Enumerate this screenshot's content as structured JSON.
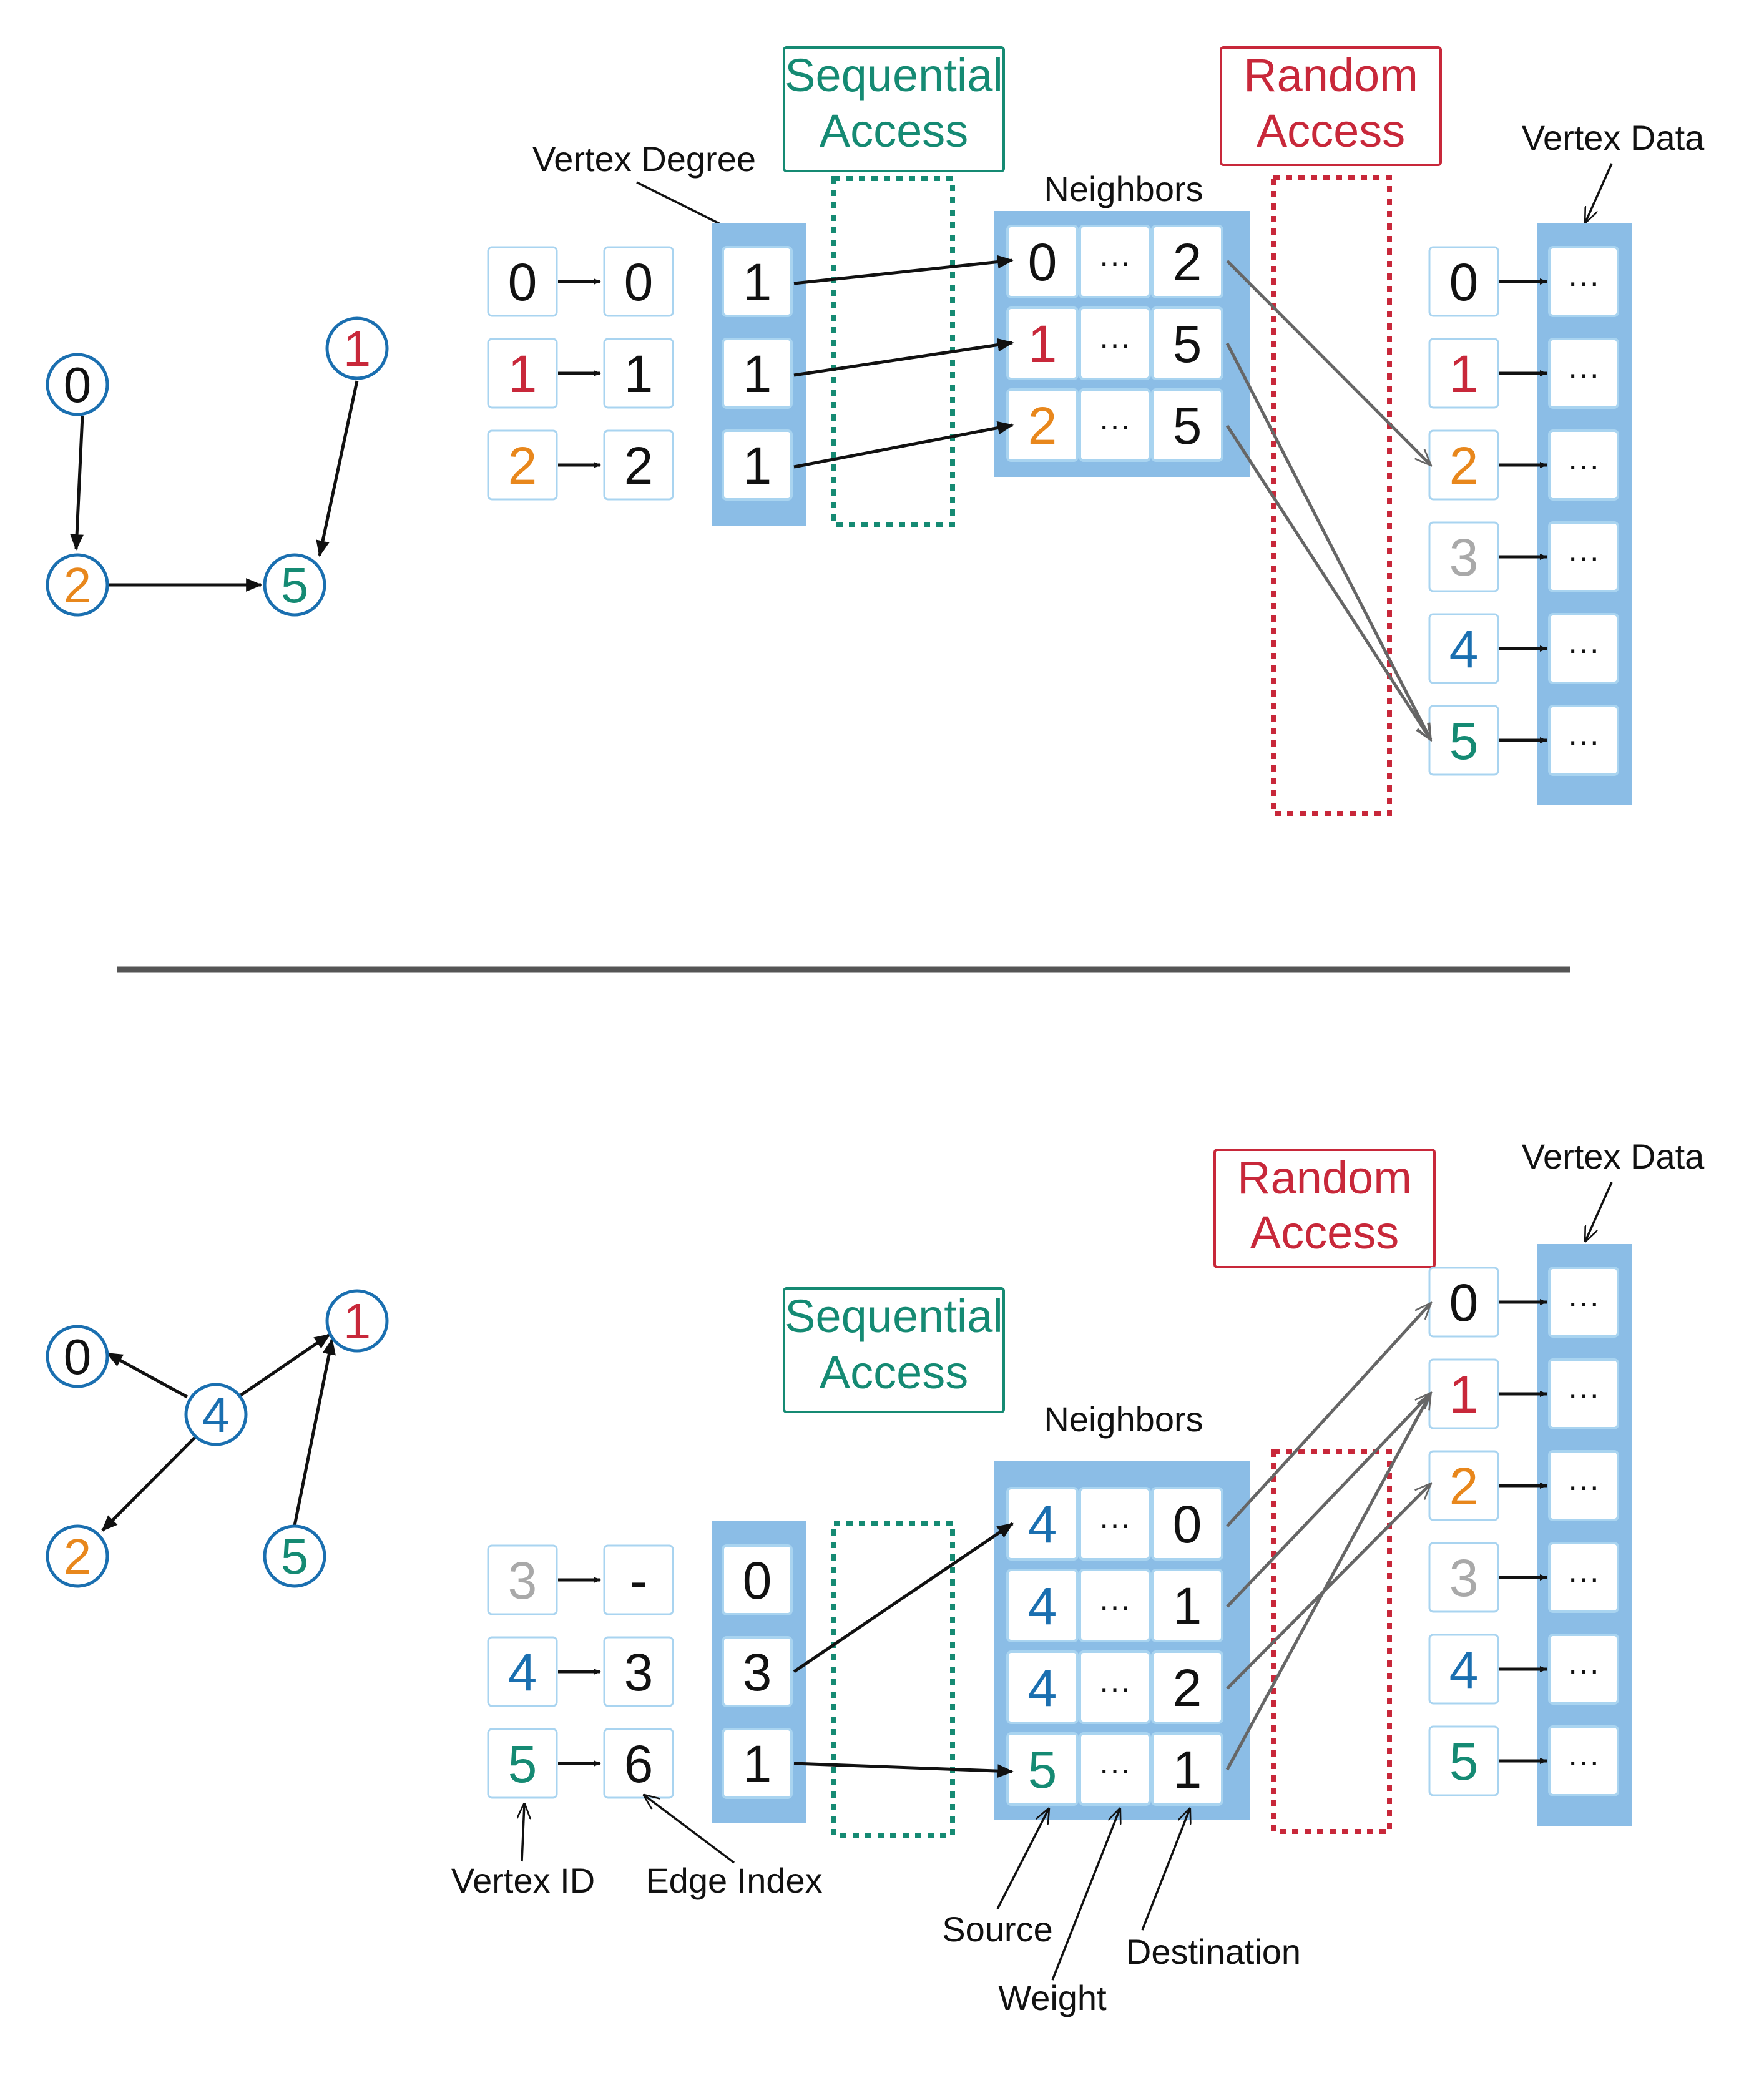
{
  "colors": {
    "black": "#111111",
    "red": "#c8283a",
    "orange": "#e8871c",
    "green": "#158a73",
    "blue": "#1a6fb0",
    "gray": "#a9a9a9",
    "array_fill": "#8bbde6",
    "cell_border": "#a9d4f0",
    "divider": "#555555",
    "random_arrow": "#666666"
  },
  "top": {
    "seq_label": [
      "Sequential",
      "Access"
    ],
    "rand_label": [
      "Random",
      "Access"
    ],
    "vertex_degree_label": "Vertex Degree",
    "neighbors_label": "Neighbors",
    "vertex_data_label": "Vertex Data",
    "graph_nodes": [
      {
        "label": "0",
        "color": "black"
      },
      {
        "label": "1",
        "color": "red"
      },
      {
        "label": "2",
        "color": "orange"
      },
      {
        "label": "5",
        "color": "green"
      }
    ],
    "vertex_ids": [
      {
        "label": "0",
        "color": "black"
      },
      {
        "label": "1",
        "color": "red"
      },
      {
        "label": "2",
        "color": "orange"
      }
    ],
    "edge_index": [
      "0",
      "1",
      "2"
    ],
    "degrees": [
      "1",
      "1",
      "1"
    ],
    "neighbors": [
      {
        "src": "0",
        "src_color": "black",
        "w": "···",
        "dst": "2"
      },
      {
        "src": "1",
        "src_color": "red",
        "w": "···",
        "dst": "5"
      },
      {
        "src": "2",
        "src_color": "orange",
        "w": "···",
        "dst": "5"
      }
    ],
    "vertex_data_ids": [
      {
        "label": "0",
        "color": "black"
      },
      {
        "label": "1",
        "color": "red"
      },
      {
        "label": "2",
        "color": "orange"
      },
      {
        "label": "3",
        "color": "gray"
      },
      {
        "label": "4",
        "color": "blue"
      },
      {
        "label": "5",
        "color": "green"
      }
    ],
    "vertex_data_vals": [
      "···",
      "···",
      "···",
      "···",
      "···",
      "···"
    ]
  },
  "bottom": {
    "seq_label": [
      "Sequential",
      "Access"
    ],
    "rand_label": [
      "Random",
      "Access"
    ],
    "neighbors_label": "Neighbors",
    "vertex_data_label": "Vertex Data",
    "graph_nodes": [
      {
        "label": "0",
        "color": "black"
      },
      {
        "label": "1",
        "color": "red"
      },
      {
        "label": "4",
        "color": "blue"
      },
      {
        "label": "2",
        "color": "orange"
      },
      {
        "label": "5",
        "color": "green"
      }
    ],
    "vertex_ids": [
      {
        "label": "3",
        "color": "gray"
      },
      {
        "label": "4",
        "color": "blue"
      },
      {
        "label": "5",
        "color": "green"
      }
    ],
    "edge_index": [
      "-",
      "3",
      "6"
    ],
    "degrees": [
      "0",
      "3",
      "1"
    ],
    "neighbors": [
      {
        "src": "4",
        "src_color": "blue",
        "w": "···",
        "dst": "0"
      },
      {
        "src": "4",
        "src_color": "blue",
        "w": "···",
        "dst": "1"
      },
      {
        "src": "4",
        "src_color": "blue",
        "w": "···",
        "dst": "2"
      },
      {
        "src": "5",
        "src_color": "green",
        "w": "···",
        "dst": "1"
      }
    ],
    "vertex_data_ids": [
      {
        "label": "0",
        "color": "black"
      },
      {
        "label": "1",
        "color": "red"
      },
      {
        "label": "2",
        "color": "orange"
      },
      {
        "label": "3",
        "color": "gray"
      },
      {
        "label": "4",
        "color": "blue"
      },
      {
        "label": "5",
        "color": "green"
      }
    ],
    "vertex_data_vals": [
      "···",
      "···",
      "···",
      "···",
      "···",
      "···"
    ],
    "annotations": {
      "vertex_id": "Vertex ID",
      "edge_index": "Edge Index",
      "source": "Source",
      "weight": "Weight",
      "destination": "Destination"
    }
  }
}
